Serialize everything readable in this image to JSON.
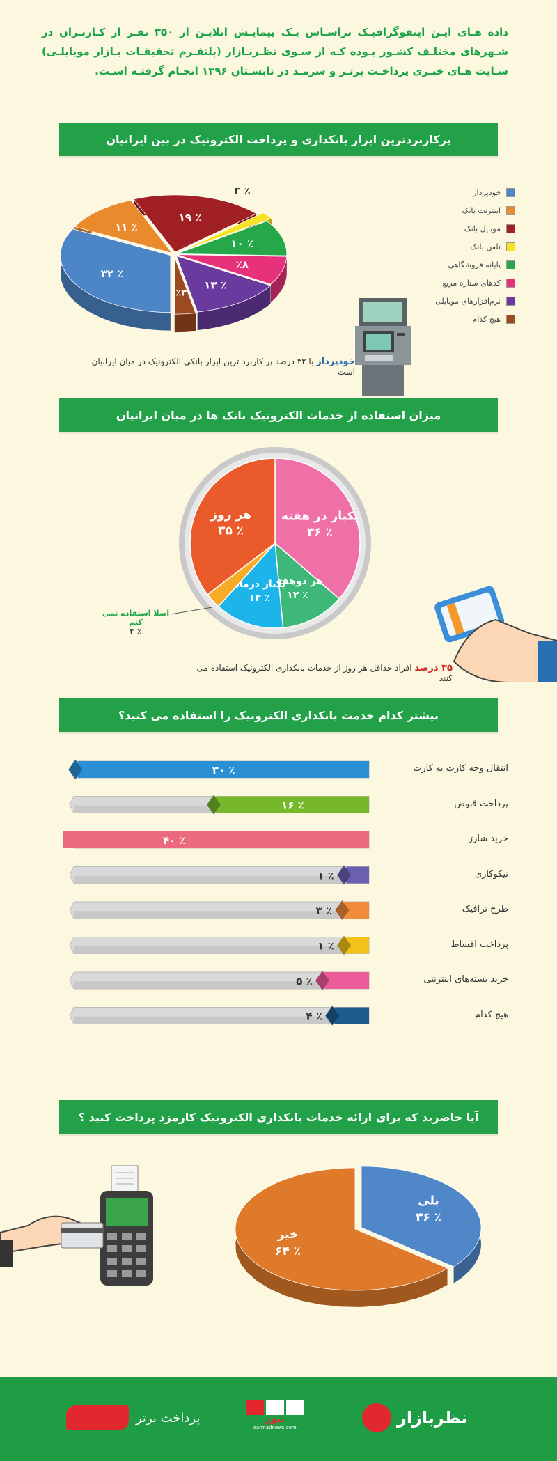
{
  "intro": "داده هـای ایـن اینفوگرافیـک براسـاس یـک پیمایـش انلایـن از ۳۵۰ نفـر از کـاربـران در شـهرهای مختلـف کشـور بـوده کـه از سـوی نظـربـازار (پلتفـرم تحقیقـات بـازار موبایلـی) سـایت هـای خبـری پرداخـت برتـر و سرمـد در تابسـتان ۱۳۹۶ انجـام گرفتـه اسـت.",
  "colors": {
    "banner": "#23a149",
    "background": "#fcf8e0",
    "accent_red": "#d0261d"
  },
  "section1": {
    "title": "پرکاربردترین ابزار بانکداری و پرداخت الکترونیک در بین ایرانیان",
    "note_bold": "خودپرداز",
    "note_text": " با ۳۲ درصد پر کاربرد ترین ابزار بانکی الکترونیک در میان ایرانیان است",
    "icon": "atm-icon"
  },
  "section2": {
    "title": "میزان استفاده از خدمات الکترونیک بانک ها در میان ایرانیان",
    "note_bold": "۳۵ درصد",
    "note_text": " افراد حداقل هر روز از خدمات بانکداری الکترونیک استفاده می کنند",
    "callout_label": "اصلا استفاده نمی کنم",
    "callout_value": "٪ ۳",
    "icon": "hand-card-icon"
  },
  "section3": {
    "title": "بیشتر کدام خدمت بانکداری الکترونیک را استفاده می کنید؟"
  },
  "section4": {
    "title": "آیا حاضرید که برای ارائه خدمات بانکداری الکترونیک کارمزد پرداخت کنید ؟",
    "icon": "pos-terminal-icon"
  },
  "footer": {
    "logo1": "نظربازار",
    "logo2": "نیوز",
    "logo2_sub": "sarmadnews.com",
    "logo3": "پرداخت برتر"
  },
  "chart_data": [
    {
      "type": "pie",
      "title": "پرکاربردترین ابزار بانکداری و پرداخت الکترونیک در بین ایرانیان",
      "legend_position": "right",
      "categories": [
        "خودپرداز",
        "اینترنت بانک",
        "موبایل بانک",
        "تلفن بانک",
        "پایانه فروشگاهی",
        "کدهای ستاره مربع",
        "نرم‌افزارهای موبایلی",
        "هیچ کدام"
      ],
      "values": [
        32,
        11,
        19,
        2,
        10,
        8,
        13,
        3
      ],
      "labels": [
        "٪ ۳۲",
        "٪ ۱۱",
        "٪ ۱۹",
        "٪ ۲",
        "٪ ۱۰",
        "٪۸",
        "٪ ۱۳",
        "٪۳"
      ],
      "colors": [
        "#4c86c6",
        "#e98a2c",
        "#a02024",
        "#f7e225",
        "#26a74a",
        "#e7317a",
        "#6a3a9e",
        "#9c4a22"
      ]
    },
    {
      "type": "pie",
      "title": "میزان استفاده از خدمات الکترونیک بانک ها در میان ایرانیان",
      "categories": [
        "یکبار در هفته",
        "هر دوهفته",
        "یکبار درماه",
        "اصلا استفاده نمی کنم",
        "هر روز"
      ],
      "values": [
        36,
        12,
        13,
        3,
        35
      ],
      "labels": [
        "٪ ۳۶",
        "٪ ۱۲",
        "٪ ۱۳",
        "٪ ۳",
        "٪ ۳۵"
      ],
      "colors": [
        "#ef70a6",
        "#3db878",
        "#1db4ea",
        "#f7ac28",
        "#ea5a2a"
      ]
    },
    {
      "type": "bar",
      "orientation": "horizontal",
      "title": "بیشتر کدام خدمت بانکداری الکترونیک را استفاده می کنید؟",
      "categories": [
        "انتقال وجه کارت به کارت",
        "پرداخت قبوض",
        "خرید شارژ",
        "نیکوکاری",
        "طرح ترافیک",
        "پرداخت اقساط",
        "خرید بسته‌های اینترنتی",
        "هیچ کدام"
      ],
      "values": [
        30,
        16,
        40,
        1,
        3,
        1,
        5,
        4
      ],
      "labels": [
        "٪ ۳۰",
        "٪ ۱۶",
        "٪ ۴۰",
        "٪ ۱",
        "٪ ۳",
        "٪ ۱",
        "٪ ۵",
        "٪ ۴"
      ],
      "xlim": [
        0,
        100
      ],
      "colors": [
        "#2b8fd3",
        "#76b82a",
        "#ec6a7d",
        "#6b5fb0",
        "#f08c3a",
        "#f2c21b",
        "#ec5c9a",
        "#1d5d8e"
      ]
    },
    {
      "type": "pie",
      "title": "آیا حاضرید که برای ارائه خدمات بانکداری الکترونیک کارمزد پرداخت کنید ؟",
      "categories": [
        "بلی",
        "خیر"
      ],
      "values": [
        36,
        64
      ],
      "labels": [
        "٪ ۳۶",
        "٪ ۶۴"
      ],
      "colors": [
        "#4f87c9",
        "#e07a2b"
      ]
    }
  ]
}
